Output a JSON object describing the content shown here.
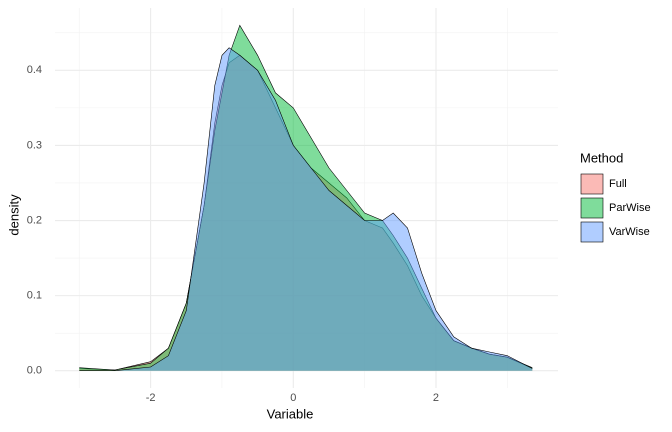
{
  "chart_data": {
    "type": "density",
    "x_label": "Variable",
    "y_label": "density",
    "legend_title": "Method",
    "legend_position": "right",
    "grid": true,
    "fill_opacity": 0.5,
    "x": [
      -3.0,
      -2.5,
      -2.0,
      -1.75,
      -1.5,
      -1.25,
      -1.1,
      -1.0,
      -0.9,
      -0.75,
      -0.5,
      -0.25,
      0,
      0.25,
      0.5,
      0.75,
      1.0,
      1.25,
      1.4,
      1.6,
      1.8,
      2.0,
      2.25,
      2.5,
      2.75,
      3.0,
      3.35
    ],
    "series": [
      {
        "name": "Full",
        "color": "#F8766D",
        "values": [
          0.003,
          0.001,
          0.012,
          0.03,
          0.09,
          0.22,
          0.33,
          0.38,
          0.41,
          0.42,
          0.4,
          0.35,
          0.3,
          0.27,
          0.25,
          0.23,
          0.2,
          0.19,
          0.17,
          0.14,
          0.1,
          0.07,
          0.04,
          0.03,
          0.022,
          0.018,
          0.003
        ]
      },
      {
        "name": "ParWise",
        "color": "#00BA38",
        "values": [
          0.004,
          0.001,
          0.01,
          0.03,
          0.09,
          0.22,
          0.32,
          0.37,
          0.42,
          0.46,
          0.42,
          0.37,
          0.35,
          0.31,
          0.27,
          0.24,
          0.21,
          0.2,
          0.18,
          0.15,
          0.11,
          0.07,
          0.04,
          0.03,
          0.022,
          0.018,
          0.004
        ]
      },
      {
        "name": "VarWise",
        "color": "#619CFF",
        "values": [
          0,
          0,
          0.005,
          0.02,
          0.08,
          0.25,
          0.38,
          0.42,
          0.43,
          0.42,
          0.4,
          0.36,
          0.3,
          0.27,
          0.24,
          0.22,
          0.2,
          0.2,
          0.21,
          0.19,
          0.13,
          0.08,
          0.045,
          0.03,
          0.025,
          0.02,
          0.003
        ]
      }
    ],
    "xlim": [
      -3.34,
      3.71
    ],
    "xticks": [
      -2,
      0,
      2
    ],
    "xminor": [
      -3,
      -1,
      1,
      3
    ],
    "ylim": [
      -0.023,
      0.483
    ],
    "yticks": [
      {
        "value": 0,
        "label": "0.0"
      },
      0.1,
      0.2,
      0.3,
      0.4
    ],
    "yminor": [
      0.05,
      0.15,
      0.25,
      0.35,
      0.45
    ]
  }
}
